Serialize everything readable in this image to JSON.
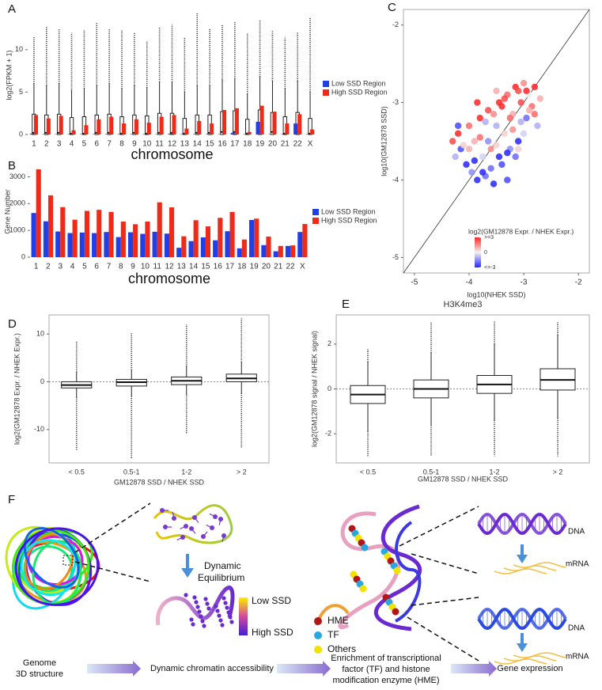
{
  "chart_data": [
    {
      "type": "box_bar",
      "label": "A",
      "ylabel": "log2(FPKM + 1)",
      "xlabel": "chromosome",
      "categories": [
        "1",
        "2",
        "3",
        "4",
        "5",
        "6",
        "7",
        "8",
        "9",
        "10",
        "11",
        "12",
        "13",
        "14",
        "15",
        "16",
        "17",
        "18",
        "19",
        "20",
        "21",
        "22",
        "X"
      ],
      "ylim": [
        0,
        14
      ],
      "yticks": [
        0,
        5,
        10
      ],
      "legend": "right",
      "series": [
        {
          "name": "Low SSD Region",
          "color": "#1f3fe8",
          "values": [
            0.1,
            0.05,
            0.05,
            0.05,
            0.05,
            0.05,
            0.05,
            0.05,
            0.05,
            0.05,
            0.05,
            0.1,
            0.05,
            0.05,
            0.05,
            0.05,
            0.2,
            0.05,
            1.5,
            0.05,
            0.05,
            1.3,
            0.05
          ]
        },
        {
          "name": "High SSD Region",
          "color": "#f02a18",
          "values": [
            2.3,
            1.9,
            2.2,
            0.5,
            1.1,
            1.8,
            2.1,
            1.3,
            1.8,
            1.4,
            2.1,
            2.3,
            0.7,
            1.6,
            1.3,
            2.9,
            3.1,
            0.3,
            3.4,
            2.7,
            1.3,
            2.4,
            0.6
          ]
        }
      ],
      "boxes": [
        {
          "q1": 0,
          "median": 0.2,
          "q3": 2.4,
          "whisker_high": 6.0,
          "max": 11.5
        },
        {
          "q1": 0,
          "median": 0.2,
          "q3": 2.3,
          "whisker_high": 5.8,
          "max": 12.8
        },
        {
          "q1": 0,
          "median": 0.2,
          "q3": 2.4,
          "whisker_high": 6.0,
          "max": 12.5
        },
        {
          "q1": 0,
          "median": 0.1,
          "q3": 2.0,
          "whisker_high": 5.2,
          "max": 12.0
        },
        {
          "q1": 0,
          "median": 0.1,
          "q3": 2.1,
          "whisker_high": 5.4,
          "max": 12.3
        },
        {
          "q1": 0,
          "median": 0.2,
          "q3": 2.3,
          "whisker_high": 5.8,
          "max": 13.2
        },
        {
          "q1": 0,
          "median": 0.2,
          "q3": 2.4,
          "whisker_high": 6.0,
          "max": 12.5
        },
        {
          "q1": 0,
          "median": 0.1,
          "q3": 2.1,
          "whisker_high": 5.4,
          "max": 12.3
        },
        {
          "q1": 0,
          "median": 0.2,
          "q3": 2.3,
          "whisker_high": 5.8,
          "max": 12.0
        },
        {
          "q1": 0,
          "median": 0.1,
          "q3": 2.2,
          "whisker_high": 5.5,
          "max": 11.0
        },
        {
          "q1": 0,
          "median": 0.2,
          "q3": 2.5,
          "whisker_high": 6.2,
          "max": 12.7
        },
        {
          "q1": 0,
          "median": 0.2,
          "q3": 2.5,
          "whisker_high": 6.2,
          "max": 13.0
        },
        {
          "q1": 0,
          "median": 0.1,
          "q3": 1.9,
          "whisker_high": 5.0,
          "max": 11.5
        },
        {
          "q1": 0,
          "median": 0.2,
          "q3": 2.3,
          "whisker_high": 5.8,
          "max": 14.3
        },
        {
          "q1": 0,
          "median": 0.2,
          "q3": 2.3,
          "whisker_high": 5.8,
          "max": 12.5
        },
        {
          "q1": 0,
          "median": 0.3,
          "q3": 2.7,
          "whisker_high": 6.5,
          "max": 13.0
        },
        {
          "q1": 0,
          "median": 0.3,
          "q3": 2.8,
          "whisker_high": 6.6,
          "max": 13.3
        },
        {
          "q1": 0,
          "median": 0.1,
          "q3": 1.8,
          "whisker_high": 4.8,
          "max": 12.0
        },
        {
          "q1": 0,
          "median": 0.3,
          "q3": 2.9,
          "whisker_high": 6.8,
          "max": 13.5
        },
        {
          "q1": 0,
          "median": 0.3,
          "q3": 2.6,
          "whisker_high": 6.3,
          "max": 12.2
        },
        {
          "q1": 0,
          "median": 0.1,
          "q3": 2.1,
          "whisker_high": 5.4,
          "max": 11.5
        },
        {
          "q1": 0,
          "median": 0.3,
          "q3": 2.6,
          "whisker_high": 6.3,
          "max": 12.0
        },
        {
          "q1": 0,
          "median": 0.1,
          "q3": 1.9,
          "whisker_high": 5.0,
          "max": 13.8
        }
      ]
    },
    {
      "type": "bar",
      "label": "B",
      "ylabel": "Gene Number",
      "xlabel": "chromosome",
      "categories": [
        "1",
        "2",
        "3",
        "4",
        "5",
        "6",
        "7",
        "8",
        "9",
        "10",
        "11",
        "12",
        "13",
        "14",
        "15",
        "16",
        "17",
        "18",
        "19",
        "20",
        "21",
        "22",
        "X"
      ],
      "ylim": [
        0,
        3400
      ],
      "yticks": [
        0,
        1000,
        2000,
        3000
      ],
      "legend": "right",
      "series": [
        {
          "name": "Low SSD Region",
          "color": "#1f3fe8",
          "values": [
            1650,
            1340,
            960,
            900,
            920,
            900,
            940,
            750,
            930,
            870,
            950,
            880,
            350,
            600,
            740,
            630,
            970,
            330,
            1390,
            450,
            220,
            420,
            940
          ]
        },
        {
          "name": "High SSD Region",
          "color": "#f02a18",
          "values": [
            3280,
            2310,
            1870,
            1400,
            1730,
            1770,
            1690,
            1330,
            1230,
            1330,
            2050,
            1860,
            780,
            1380,
            1150,
            1470,
            1690,
            660,
            1440,
            770,
            420,
            440,
            1240
          ]
        }
      ]
    },
    {
      "type": "scatter",
      "label": "C",
      "xlabel": "log10(NHEK SSD)",
      "ylabel": "log10(GM12878 SSD)",
      "xlim": [
        -5.2,
        -1.8
      ],
      "ylim": [
        -5.2,
        -1.8
      ],
      "xticks": [
        -5,
        -4,
        -3,
        -2
      ],
      "yticks": [
        -5,
        -4,
        -3,
        -2
      ],
      "diagonal": true,
      "frame": true,
      "colorbar_title": "log2(GM12878 Expr. / NHEK Expr.)",
      "clim": [
        -3,
        3
      ],
      "colorscale": [
        "#2626ff",
        "#f2f2f2",
        "#ff2626"
      ],
      "cticks": [
        {
          "value": 3,
          "label": ">=3"
        },
        0,
        {
          "value": -3,
          "label": "<=-3"
        }
      ],
      "x": [
        -4.3,
        -4.25,
        -4.2,
        -4.15,
        -4.1,
        -4.05,
        -4.0,
        -3.95,
        -3.9,
        -3.85,
        -3.8,
        -3.75,
        -3.7,
        -3.65,
        -3.6,
        -3.55,
        -3.5,
        -3.45,
        -3.4,
        -3.35,
        -3.3,
        -3.25,
        -3.2,
        -3.15,
        -3.1,
        -3.05,
        -3.0,
        -2.95,
        -2.9,
        -2.85,
        -2.8,
        -2.75,
        -2.7,
        -4.2,
        -4.0,
        -3.9,
        -3.8,
        -3.7,
        -3.6,
        -3.5,
        -3.4,
        -3.3,
        -3.2,
        -3.1,
        -3.0,
        -2.9,
        -2.8,
        -3.85,
        -3.65,
        -3.45,
        -3.25,
        -3.05,
        -3.55,
        -3.35,
        -3.15,
        -2.95,
        -3.75,
        -3.5,
        -3.3,
        -3.1
      ],
      "y": [
        -3.5,
        -3.7,
        -3.4,
        -3.6,
        -3.55,
        -3.8,
        -3.3,
        -3.9,
        -3.5,
        -4.0,
        -3.2,
        -3.7,
        -3.95,
        -3.1,
        -3.6,
        -4.05,
        -3.3,
        -3.0,
        -3.8,
        -3.4,
        -2.9,
        -3.6,
        -3.15,
        -2.8,
        -3.5,
        -3.0,
        -2.75,
        -3.2,
        -2.9,
        -3.05,
        -2.8,
        -3.3,
        -2.95,
        -3.3,
        -3.6,
        -3.75,
        -3.45,
        -3.25,
        -3.85,
        -3.55,
        -3.05,
        -3.65,
        -3.35,
        -2.85,
        -3.4,
        -3.1,
        -3.15,
        -3.0,
        -3.5,
        -3.7,
        -3.2,
        -3.25,
        -3.15,
        -2.95,
        -3.7,
        -2.85,
        -3.9,
        -2.85,
        -4.0,
        -3.6
      ],
      "c": [
        2.5,
        -1,
        3,
        -2.5,
        0.5,
        -3,
        2,
        -1.5,
        1,
        -3,
        3,
        -0.5,
        -2,
        2.5,
        1.5,
        -3,
        -1,
        3,
        -2.5,
        0.5,
        2,
        -1.5,
        1,
        3,
        -3,
        2.5,
        1.5,
        -2,
        0,
        2,
        3,
        -1,
        1,
        -2.5,
        1,
        -3,
        2,
        -1,
        -2,
        0.5,
        3,
        -3,
        1.5,
        2.5,
        -0.5,
        1,
        2,
        3,
        -1.5,
        -3,
        2,
        -1,
        1.5,
        2.5,
        -2,
        3,
        -3,
        1,
        -2.5,
        0.5
      ]
    },
    {
      "type": "box",
      "label": "D",
      "ylabel": "log2(GM12878 Expr. / NHEK Expr.)",
      "xlabel": "GM12878 SSD / NHEK SSD",
      "categories": [
        "< 0.5",
        "0.5-1",
        "1-2",
        "> 2"
      ],
      "ylim": [
        -17,
        14
      ],
      "yticks": [
        -10,
        0,
        10
      ],
      "hline": 0,
      "frame": true,
      "boxes": [
        {
          "min": -14.5,
          "whisker_low": -3.3,
          "q1": -1.3,
          "median": -0.7,
          "q3": 0,
          "whisker_high": 2.0,
          "max": 8.5
        },
        {
          "min": -16,
          "whisker_low": -3.0,
          "q1": -0.9,
          "median": -0.1,
          "q3": 0.5,
          "whisker_high": 2.5,
          "max": 10.3
        },
        {
          "min": -11,
          "whisker_low": -2.7,
          "q1": -0.6,
          "median": 0.2,
          "q3": 1.0,
          "whisker_high": 3.2,
          "max": 12
        },
        {
          "min": -14,
          "whisker_low": -2.4,
          "q1": 0,
          "median": 0.7,
          "q3": 1.6,
          "whisker_high": 4.1,
          "max": 13.3
        }
      ]
    },
    {
      "type": "box",
      "label": "E",
      "title": "H3K4me3",
      "ylabel": "log2(GM12878 signal / NHEK signal)",
      "xlabel": "GM12878 SSD / NHEK SSD",
      "categories": [
        "< 0.5",
        "0.5-1",
        "1-2",
        "> 2"
      ],
      "ylim": [
        -3.3,
        3.3
      ],
      "yticks": [
        -2,
        0,
        2
      ],
      "hline": 0,
      "frame": true,
      "boxes": [
        {
          "min": -3,
          "whisker_low": -1.9,
          "q1": -0.65,
          "median": -0.25,
          "q3": 0.15,
          "whisker_high": 1.2,
          "max": 1.8
        },
        {
          "min": -3,
          "whisker_low": -1.6,
          "q1": -0.4,
          "median": 0,
          "q3": 0.4,
          "whisker_high": 1.6,
          "max": 3
        },
        {
          "min": -3,
          "whisker_low": -1.4,
          "q1": -0.2,
          "median": 0.2,
          "q3": 0.6,
          "whisker_high": 2.0,
          "max": 3
        },
        {
          "min": -3,
          "whisker_low": -1.3,
          "q1": -0.05,
          "median": 0.4,
          "q3": 0.9,
          "whisker_high": 2.4,
          "max": 3
        }
      ]
    }
  ],
  "diagram": {
    "label": "F",
    "equilibrium": [
      "Dynamic",
      "Equilibrium"
    ],
    "ssd_scale": {
      "top": "Low SSD",
      "bottom": "High SSD"
    },
    "legend": [
      {
        "name": "HME",
        "color": "#b01818"
      },
      {
        "name": "TF",
        "color": "#2aa7e0"
      },
      {
        "name": "Others",
        "color": "#f2e200"
      }
    ],
    "outputs": [
      {
        "dna": "DNA",
        "mrna": "mRNA"
      },
      {
        "dna": "DNA",
        "mrna": "mRNA"
      }
    ],
    "steps": [
      [
        "Genome",
        "3D structure"
      ],
      [
        "Dynamic chromatin accessibility"
      ],
      [
        "Enrichment of transcriptional",
        "factor (TF) and histone",
        "modification enzyme (HME)"
      ],
      [
        "Gene expression"
      ]
    ]
  }
}
